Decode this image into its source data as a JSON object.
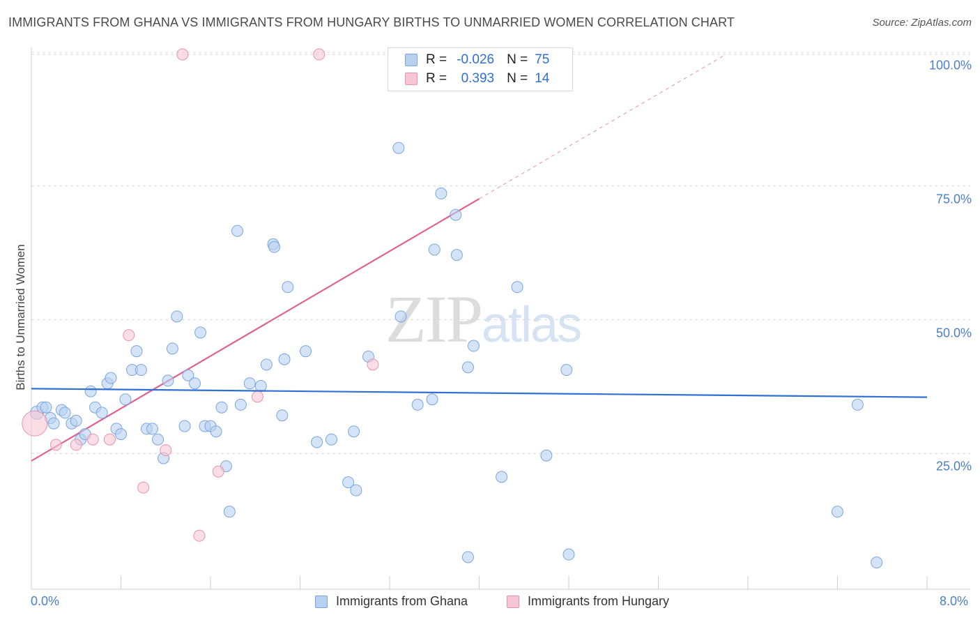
{
  "title": "IMMIGRANTS FROM GHANA VS IMMIGRANTS FROM HUNGARY BIRTHS TO UNMARRIED WOMEN CORRELATION CHART",
  "source": "Source: ZipAtlas.com",
  "watermark": {
    "part1": "ZIP",
    "part2": "atlas"
  },
  "legend": {
    "r_label": "R =",
    "n_label": "N =",
    "ghana": {
      "r": "-0.026",
      "n": "75"
    },
    "hungary": {
      "r": "0.393",
      "n": "14"
    }
  },
  "chart_data": {
    "type": "scatter",
    "title": "IMMIGRANTS FROM GHANA VS IMMIGRANTS FROM HUNGARY BIRTHS TO UNMARRIED WOMEN CORRELATION CHART",
    "xlabel": "",
    "ylabel": "Births to Unmarried Women",
    "xlim": [
      0,
      8
    ],
    "ylim": [
      0,
      100
    ],
    "x_tick_labels": [
      "0.0%",
      "8.0%"
    ],
    "y_ticks": [
      {
        "value": 25,
        "label": "25.0%"
      },
      {
        "value": 50,
        "label": "50.0%"
      },
      {
        "value": 75,
        "label": "75.0%"
      },
      {
        "value": 100,
        "label": "100.0%"
      }
    ],
    "colors": {
      "ghana_fill": "#b8d0f0",
      "ghana_stroke": "#7aa6df",
      "ghana_line": "#2f6fd6",
      "hungary_fill": "#f6c6d4",
      "hungary_stroke": "#e993b0",
      "hungary_line": "#e0628f"
    },
    "series": [
      {
        "name": "Immigrants from Ghana",
        "color": "#b8d0f0",
        "trend": {
          "x": [
            0,
            8
          ],
          "y": [
            37.5,
            35.9
          ],
          "r": -0.026,
          "n": 75
        },
        "points": [
          [
            0.05,
            33
          ],
          [
            0.1,
            34
          ],
          [
            0.13,
            34
          ],
          [
            0.17,
            32
          ],
          [
            0.2,
            31
          ],
          [
            0.27,
            33.5
          ],
          [
            0.3,
            33
          ],
          [
            0.36,
            31
          ],
          [
            0.4,
            31.5
          ],
          [
            0.44,
            28
          ],
          [
            0.48,
            29
          ],
          [
            0.53,
            37
          ],
          [
            0.57,
            34
          ],
          [
            0.63,
            33
          ],
          [
            0.68,
            38.5
          ],
          [
            0.71,
            39.5
          ],
          [
            0.76,
            30
          ],
          [
            0.8,
            29
          ],
          [
            0.84,
            35.5
          ],
          [
            0.9,
            41
          ],
          [
            0.94,
            44.5
          ],
          [
            0.98,
            41
          ],
          [
            1.03,
            30
          ],
          [
            1.08,
            30
          ],
          [
            1.13,
            28
          ],
          [
            1.18,
            24.5
          ],
          [
            1.22,
            39
          ],
          [
            1.26,
            45
          ],
          [
            1.3,
            51
          ],
          [
            1.37,
            30.5
          ],
          [
            1.4,
            40
          ],
          [
            1.46,
            38.5
          ],
          [
            1.51,
            48
          ],
          [
            1.55,
            30.5
          ],
          [
            1.6,
            30.5
          ],
          [
            1.65,
            29.5
          ],
          [
            1.7,
            34
          ],
          [
            1.74,
            23
          ],
          [
            1.77,
            14.5
          ],
          [
            1.84,
            67
          ],
          [
            1.87,
            34.5
          ],
          [
            1.95,
            38.5
          ],
          [
            2.05,
            38
          ],
          [
            2.1,
            42
          ],
          [
            2.16,
            64.5
          ],
          [
            2.17,
            64
          ],
          [
            2.29,
            56.5
          ],
          [
            2.24,
            32.5
          ],
          [
            2.26,
            43
          ],
          [
            2.45,
            44.5
          ],
          [
            2.55,
            27.5
          ],
          [
            2.68,
            28
          ],
          [
            2.83,
            20
          ],
          [
            2.9,
            18.5
          ],
          [
            2.88,
            29.5
          ],
          [
            3.01,
            43.5
          ],
          [
            3.3,
            51
          ],
          [
            3.28,
            82.5
          ],
          [
            3.45,
            34.5
          ],
          [
            3.58,
            35.5
          ],
          [
            3.6,
            63.5
          ],
          [
            3.66,
            74
          ],
          [
            3.79,
            70
          ],
          [
            3.8,
            62.5
          ],
          [
            3.9,
            41.5
          ],
          [
            3.9,
            6
          ],
          [
            3.95,
            45.5
          ],
          [
            4.2,
            21
          ],
          [
            4.34,
            56.5
          ],
          [
            4.6,
            25
          ],
          [
            4.78,
            41
          ],
          [
            4.8,
            6.5
          ],
          [
            7.2,
            14.5
          ],
          [
            7.38,
            34.5
          ],
          [
            7.55,
            5
          ]
        ]
      },
      {
        "name": "Immigrants from Hungary",
        "color": "#f6c6d4",
        "trend": {
          "x": [
            0,
            4
          ],
          "y": [
            24,
            73
          ],
          "r": 0.393,
          "n": 14
        },
        "points": [
          [
            0.03,
            31
          ],
          [
            0.22,
            27
          ],
          [
            0.4,
            27
          ],
          [
            0.55,
            28
          ],
          [
            0.7,
            28
          ],
          [
            0.87,
            47.5
          ],
          [
            1.0,
            19
          ],
          [
            1.2,
            26
          ],
          [
            1.35,
            100
          ],
          [
            1.5,
            10
          ],
          [
            1.67,
            22
          ],
          [
            2.02,
            36
          ],
          [
            2.57,
            100
          ],
          [
            3.05,
            42
          ]
        ]
      }
    ]
  },
  "bottom_legend": [
    {
      "label": "Immigrants from Ghana",
      "fill": "#b8d0f0",
      "stroke": "#7aa6df"
    },
    {
      "label": "Immigrants from Hungary",
      "fill": "#f6c6d4",
      "stroke": "#e993b0"
    }
  ]
}
